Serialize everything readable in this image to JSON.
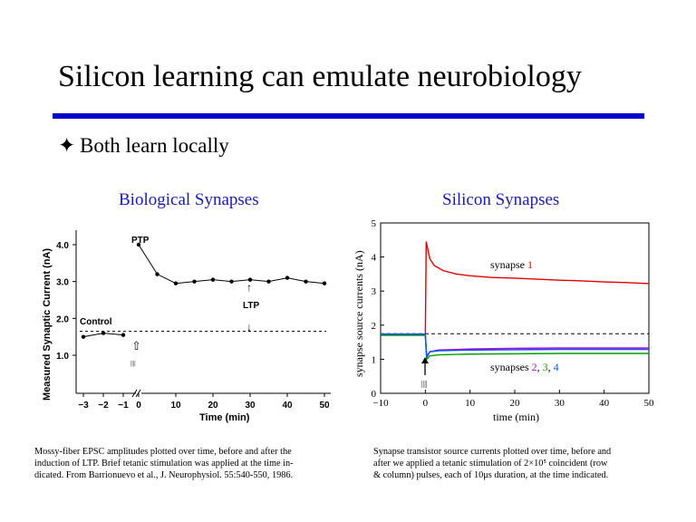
{
  "slide": {
    "title": "Silicon learning can emulate neurobiology",
    "bullet_symbol": "✦",
    "bullet": "Both learn locally",
    "accent_color": "#0000cc",
    "heading_color": "#1a1ab8"
  },
  "left": {
    "heading": "Biological Synapses",
    "caption": [
      "Mossy-fiber EPSC amplitudes plotted over time, before and after the",
      "induction of LTP. Brief tetanic stimulation was applied at the time in-",
      "dicated. From Barrionuevo et al., J. Neurophysiol. 55:540-550, 1986."
    ]
  },
  "right": {
    "heading": "Silicon Synapses",
    "caption": [
      "Synapse transistor source currents plotted over time, before and",
      "after we applied a tetanic stimulation of 2×10⁵ coincident (row",
      "& column) pulses, each of 10μs duration, at the time indicated."
    ]
  },
  "chart_data": [
    {
      "type": "line",
      "title": "",
      "xlabel": "Time (min)",
      "ylabel": "Measured Synaptic Current (nA)",
      "x_ticks": [
        "−3",
        "−2",
        "−1",
        "0",
        "10",
        "20",
        "30",
        "40",
        "50"
      ],
      "y_ticks": [
        "1.0",
        "2.0",
        "3.0",
        "4.0"
      ],
      "ylim": [
        0.5,
        4.2
      ],
      "series": [
        {
          "name": "Control",
          "points": [
            [
              -3,
              1.5
            ],
            [
              -2,
              1.6
            ],
            [
              -1,
              1.55
            ]
          ]
        },
        {
          "name": "PTP / LTP",
          "points": [
            [
              0,
              4.0
            ],
            [
              5,
              3.2
            ],
            [
              10,
              2.95
            ],
            [
              15,
              3.0
            ],
            [
              20,
              3.05
            ],
            [
              25,
              3.0
            ],
            [
              30,
              3.05
            ],
            [
              35,
              3.0
            ],
            [
              40,
              3.1
            ],
            [
              45,
              3.0
            ],
            [
              50,
              2.95
            ]
          ]
        }
      ],
      "baseline": 1.65,
      "annotations": {
        "ptp": "PTP",
        "ltp": "LTP",
        "control": "Control",
        "ltp_arrow": "↑",
        "baseline_arrow": "↓",
        "stim_arrow": "⇧",
        "stim_marks": "||||"
      }
    },
    {
      "type": "line",
      "title": "",
      "xlabel": "time (min)",
      "ylabel": "synapse source currents (nA)",
      "xlim": [
        -10,
        50
      ],
      "ylim": [
        0,
        5
      ],
      "x_ticks": [
        "−10",
        "0",
        "10",
        "20",
        "30",
        "40",
        "50"
      ],
      "y_ticks": [
        "0",
        "1",
        "2",
        "3",
        "4",
        "5"
      ],
      "baseline": 1.75,
      "series": [
        {
          "name": "synapse 1",
          "color": "#e00000",
          "points": [
            [
              -10,
              1.72
            ],
            [
              0,
              1.72
            ],
            [
              0.2,
              4.45
            ],
            [
              1,
              3.95
            ],
            [
              2,
              3.75
            ],
            [
              4,
              3.6
            ],
            [
              7,
              3.5
            ],
            [
              10,
              3.45
            ],
            [
              15,
              3.4
            ],
            [
              20,
              3.38
            ],
            [
              25,
              3.35
            ],
            [
              30,
              3.32
            ],
            [
              35,
              3.3
            ],
            [
              40,
              3.27
            ],
            [
              45,
              3.25
            ],
            [
              50,
              3.22
            ]
          ]
        },
        {
          "name": "synapse 2",
          "color": "#cc00cc",
          "points": [
            [
              -10,
              1.72
            ],
            [
              0,
              1.72
            ],
            [
              0.3,
              1.05
            ],
            [
              1,
              1.22
            ],
            [
              3,
              1.27
            ],
            [
              10,
              1.3
            ],
            [
              20,
              1.32
            ],
            [
              30,
              1.33
            ],
            [
              40,
              1.33
            ],
            [
              50,
              1.33
            ]
          ]
        },
        {
          "name": "synapse 3",
          "color": "#00a000",
          "points": [
            [
              -10,
              1.7
            ],
            [
              0,
              1.7
            ],
            [
              0.3,
              1.0
            ],
            [
              1,
              1.1
            ],
            [
              3,
              1.13
            ],
            [
              10,
              1.15
            ],
            [
              20,
              1.16
            ],
            [
              30,
              1.17
            ],
            [
              40,
              1.17
            ],
            [
              50,
              1.17
            ]
          ]
        },
        {
          "name": "synapse 4",
          "color": "#0055ff",
          "points": [
            [
              -10,
              1.74
            ],
            [
              0,
              1.74
            ],
            [
              0.3,
              1.08
            ],
            [
              1,
              1.22
            ],
            [
              3,
              1.25
            ],
            [
              10,
              1.27
            ],
            [
              20,
              1.28
            ],
            [
              30,
              1.29
            ],
            [
              40,
              1.29
            ],
            [
              50,
              1.29
            ]
          ]
        }
      ],
      "labels": {
        "synapse1_prefix": "synapse ",
        "synapse1_num": "1",
        "synapses_prefix": "synapses ",
        "num2": "2",
        "num3": "3",
        "num4": "4",
        "sep": ", "
      },
      "stim_marks": "||||"
    }
  ]
}
